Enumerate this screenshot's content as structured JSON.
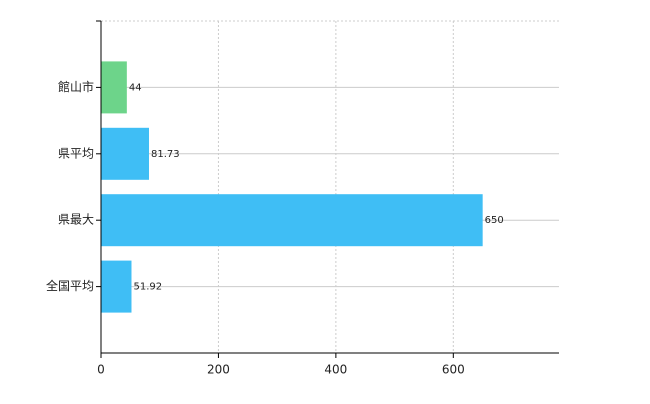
{
  "chart_data": {
    "type": "hbar",
    "categories": [
      "館山市",
      "県平均",
      "県最大",
      "全国平均"
    ],
    "values": [
      44,
      81.73,
      650,
      51.92
    ],
    "colors": [
      "#6dd48a",
      "#3fbef5",
      "#3fbef5",
      "#3fbef5"
    ],
    "xlim": [
      0,
      780
    ],
    "xticks": [
      0,
      200,
      400,
      600
    ],
    "grid": true
  }
}
